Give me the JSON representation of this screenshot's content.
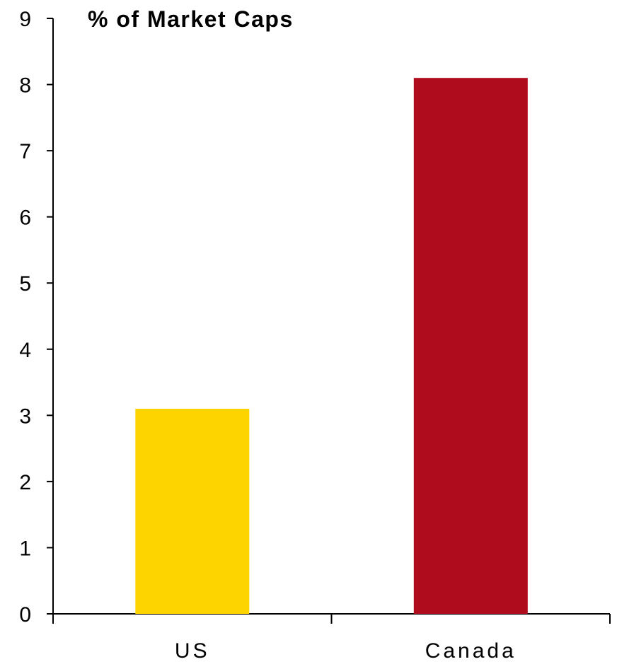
{
  "chart_data": {
    "type": "bar",
    "title": "% of Market Caps",
    "xlabel": "",
    "ylabel": "",
    "categories": [
      "US",
      "Canada"
    ],
    "values": [
      3.1,
      8.1
    ],
    "colors": [
      "#FDD400",
      "#AF0C1E"
    ],
    "ylim": [
      0,
      9
    ],
    "yticks": [
      "0",
      "1",
      "2",
      "3",
      "4",
      "5",
      "6",
      "7",
      "8",
      "9"
    ],
    "grid": false,
    "legend": "none"
  }
}
